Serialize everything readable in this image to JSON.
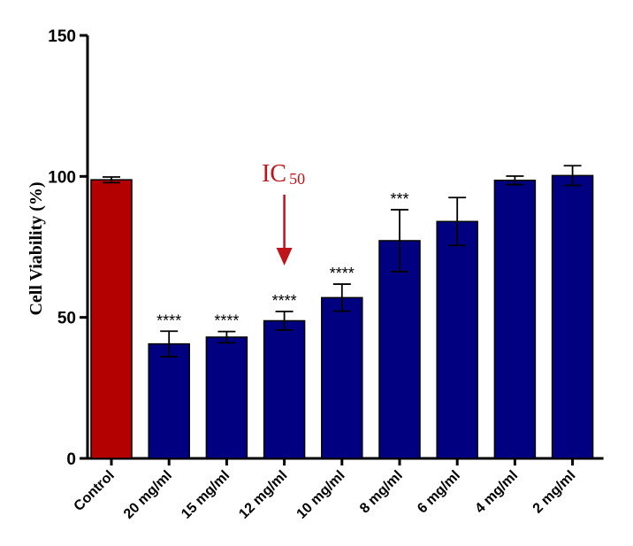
{
  "chart_data": {
    "type": "bar",
    "title": "",
    "xlabel": "",
    "ylabel": "Cell Viability (%)",
    "ylim": [
      0,
      150
    ],
    "yticks": [
      0,
      50,
      100,
      150
    ],
    "grid": false,
    "categories": [
      "Control",
      "20 mg/ml",
      "15 mg/ml",
      "12 mg/ml",
      "10 mg/ml",
      "8 mg/ml",
      "6 mg/ml",
      "4 mg/ml",
      "2 mg/ml"
    ],
    "values": [
      98.8,
      40.6,
      43.0,
      48.8,
      57.0,
      77.2,
      84.0,
      98.6,
      100.3
    ],
    "errors": [
      1.0,
      4.5,
      2.0,
      3.3,
      4.8,
      11.0,
      8.5,
      1.5,
      3.5
    ],
    "significance": [
      "",
      "****",
      "****",
      "****",
      "****",
      "***",
      "",
      "",
      ""
    ],
    "colors": [
      "#b30000",
      "#000080",
      "#000080",
      "#000080",
      "#000080",
      "#000080",
      "#000080",
      "#000080",
      "#000080"
    ],
    "annotation": {
      "label": "IC",
      "subscript": "50",
      "target_category": "12 mg/ml",
      "color": "#c0141c"
    }
  }
}
